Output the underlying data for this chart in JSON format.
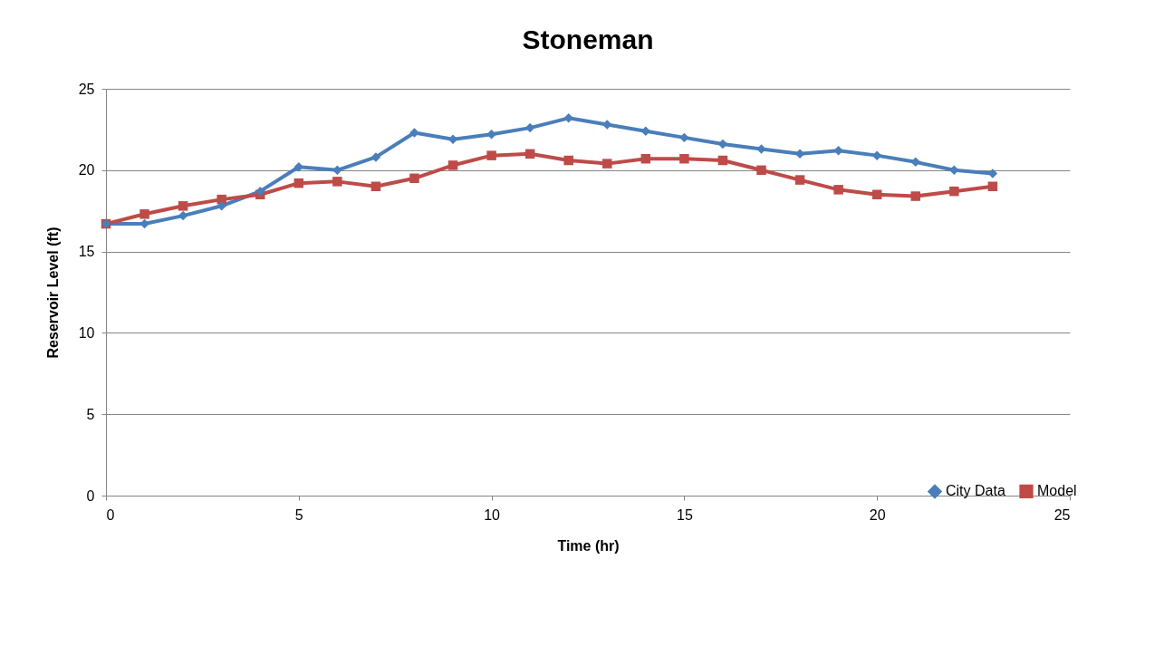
{
  "chart_data": {
    "type": "line",
    "title": "Stoneman",
    "xlabel": "Time (hr)",
    "ylabel": "Reservoir Level (ft)",
    "x": [
      0,
      1,
      2,
      3,
      4,
      5,
      6,
      7,
      8,
      9,
      10,
      11,
      12,
      13,
      14,
      15,
      16,
      17,
      18,
      19,
      20,
      21,
      22,
      23
    ],
    "series": [
      {
        "name": "City Data",
        "color": "#4a7ebb",
        "marker": "diamond",
        "values": [
          16.7,
          16.7,
          17.2,
          17.8,
          18.7,
          20.2,
          20.0,
          20.8,
          22.3,
          21.9,
          22.2,
          22.6,
          23.2,
          22.8,
          22.4,
          22.0,
          21.6,
          21.3,
          21.0,
          21.2,
          20.9,
          20.5,
          20.0,
          19.8
        ]
      },
      {
        "name": "Model",
        "color": "#be4b48",
        "marker": "square",
        "values": [
          16.7,
          17.3,
          17.8,
          18.2,
          18.5,
          19.2,
          19.3,
          19.0,
          19.5,
          20.3,
          20.9,
          21.0,
          20.6,
          20.4,
          20.7,
          20.7,
          20.6,
          20.0,
          19.4,
          18.8,
          18.5,
          18.4,
          18.7,
          19.0
        ]
      }
    ],
    "xlim": [
      0,
      25
    ],
    "xticks": [
      0,
      5,
      10,
      15,
      20,
      25
    ],
    "ylim": [
      0,
      25
    ],
    "yticks": [
      0,
      5,
      10,
      15,
      20,
      25
    ],
    "grid": "y",
    "legend": "bottom right",
    "line_style": "solid"
  }
}
